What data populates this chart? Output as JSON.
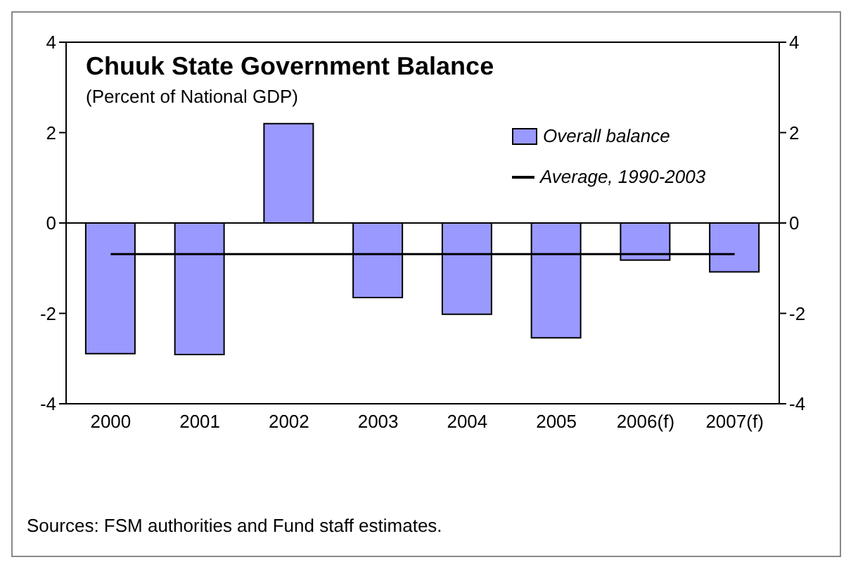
{
  "chart_data": {
    "type": "bar",
    "title": "Chuuk State Government Balance",
    "subtitle": "(Percent of National GDP)",
    "categories": [
      "2000",
      "2001",
      "2002",
      "2003",
      "2004",
      "2005",
      "2006(f)",
      "2007(f)"
    ],
    "series": [
      {
        "name": "Overall balance",
        "color": "#9999ff",
        "values": [
          -2.89,
          -2.91,
          2.2,
          -1.65,
          -2.02,
          -2.54,
          -0.82,
          -1.08
        ]
      },
      {
        "name": "Average, 1990-2003",
        "type": "line",
        "color": "#000000",
        "values": [
          -0.69,
          -0.69,
          -0.69,
          -0.69,
          -0.69,
          -0.69,
          -0.69,
          -0.69
        ]
      }
    ],
    "ylim": [
      -4,
      4
    ],
    "yticks": [
      -4,
      -2,
      0,
      2,
      4
    ],
    "y2lim": [
      -4,
      4
    ],
    "y2ticks": [
      -4,
      -2,
      0,
      2,
      4
    ],
    "grid": false,
    "legend": "top right",
    "marker": "none",
    "annotations": [
      "Sources: FSM authorities and Fund staff estimates."
    ]
  }
}
